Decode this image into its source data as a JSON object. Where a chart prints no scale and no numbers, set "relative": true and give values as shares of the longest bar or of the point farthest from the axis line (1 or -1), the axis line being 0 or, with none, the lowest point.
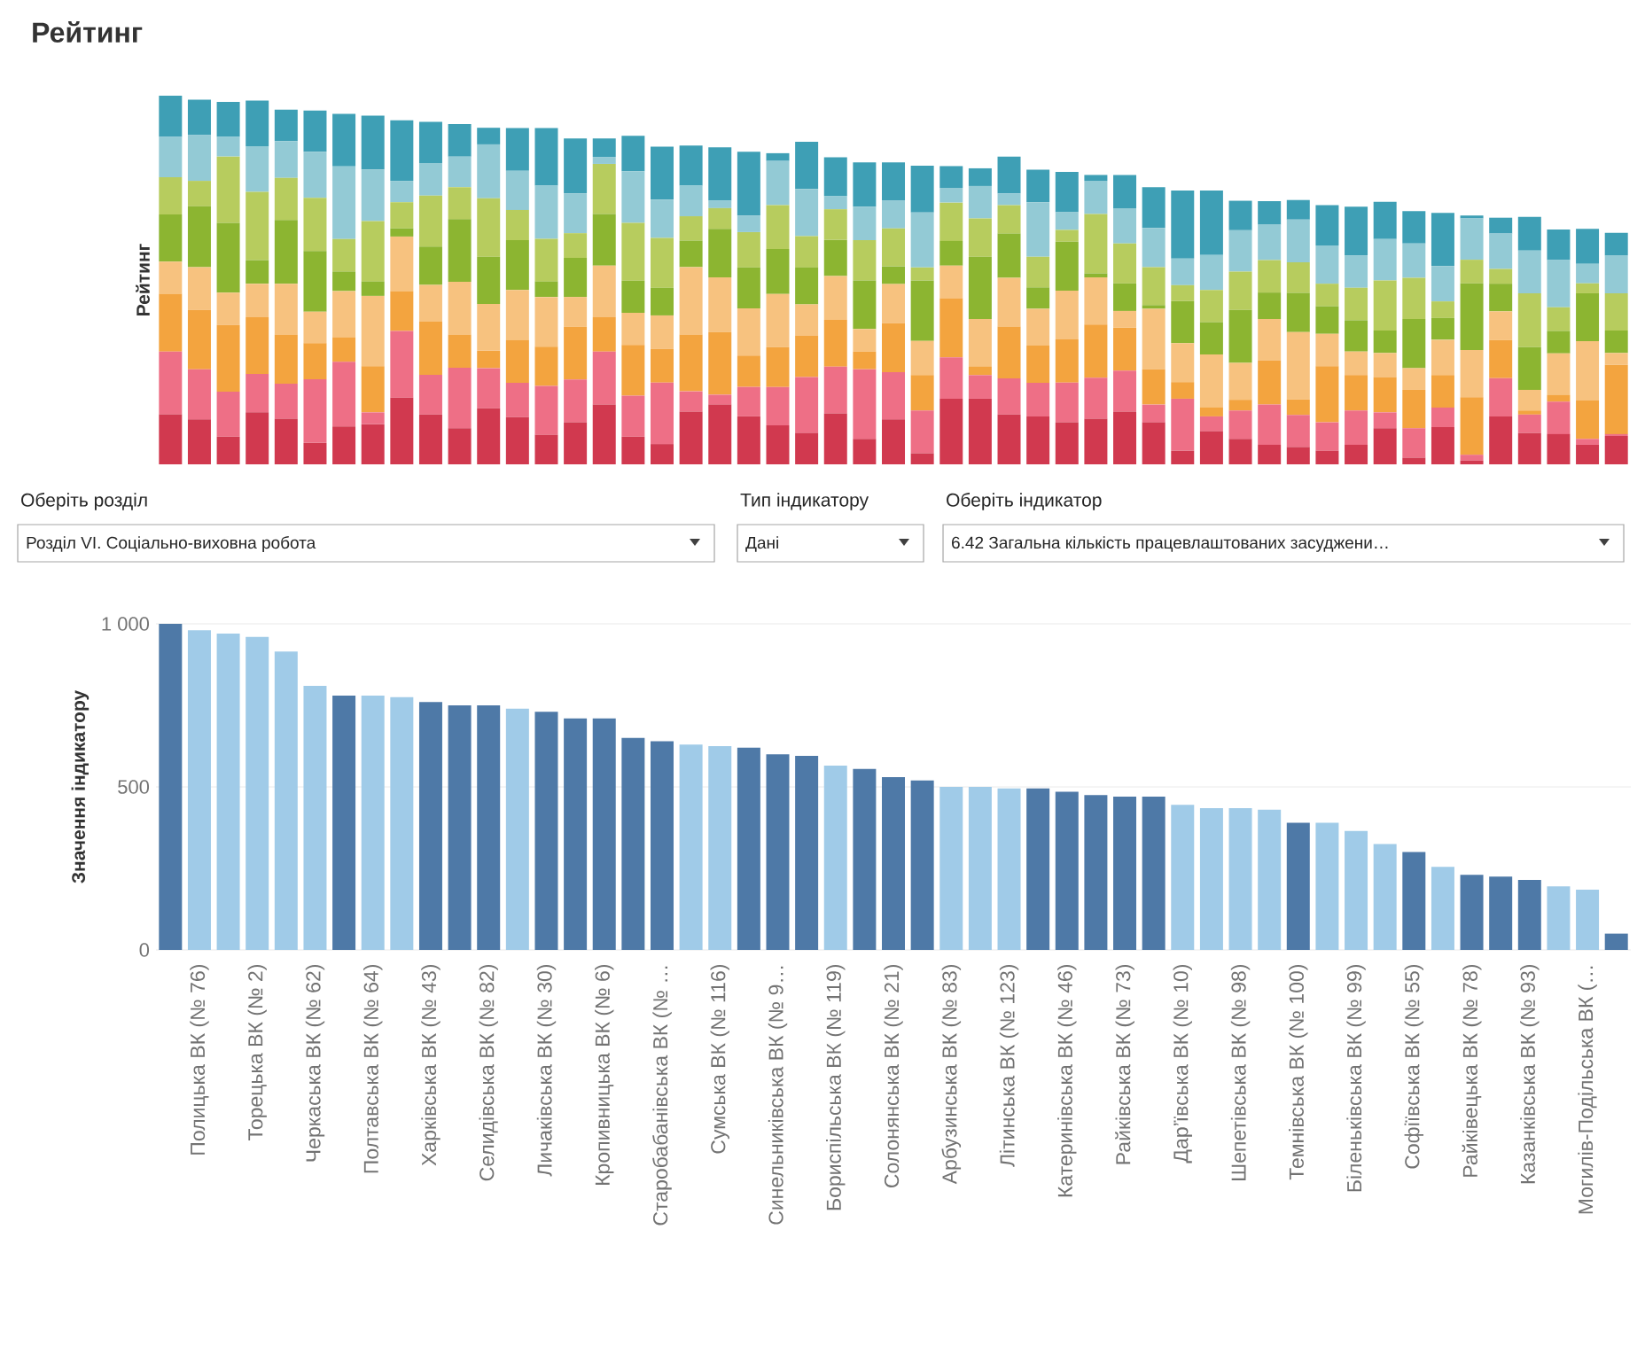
{
  "chart_data": [
    {
      "type": "bar",
      "title": "Рейтинг",
      "ylabel": "Рейтинг",
      "stacked": true,
      "relative": true,
      "categories": [
        null,
        null,
        null,
        null,
        null,
        null,
        null,
        null,
        null,
        null,
        null,
        null,
        null,
        null,
        null,
        null,
        null,
        null,
        null,
        null,
        null,
        null,
        null,
        null,
        null,
        null,
        null,
        null,
        null,
        null,
        null,
        null,
        null,
        null,
        null,
        null,
        null,
        null,
        null,
        null,
        null,
        null,
        null,
        null,
        null,
        null,
        null,
        null,
        null,
        null,
        null
      ],
      "series": [
        {
          "color": "#d1394f",
          "values": [
            0.136,
            0.122,
            0.075,
            0.141,
            0.124,
            0.058,
            0.103,
            0.109,
            0.181,
            0.135,
            0.098,
            0.152,
            0.128,
            0.08,
            0.114,
            0.162,
            0.075,
            0.055,
            0.143,
            0.162,
            0.13,
            0.106,
            0.085,
            0.138,
            0.069,
            0.122,
            0.03,
            0.178,
            0.178,
            0.135,
            0.13,
            0.114,
            0.124,
            0.143,
            0.114,
            0.037,
            0.09,
            0.069,
            0.053,
            0.047,
            0.037,
            0.053,
            0.098,
            0.018,
            0.101,
            0.01,
            0.13,
            0.085,
            0.082,
            0.053,
            0.077
          ]
        },
        {
          "color": "#ee6f86",
          "values": [
            0.17,
            0.136,
            0.122,
            0.104,
            0.095,
            0.173,
            0.175,
            0.032,
            0.181,
            0.108,
            0.164,
            0.109,
            0.093,
            0.133,
            0.116,
            0.144,
            0.111,
            0.167,
            0.055,
            0.027,
            0.08,
            0.104,
            0.152,
            0.127,
            0.189,
            0.128,
            0.116,
            0.112,
            0.064,
            0.098,
            0.091,
            0.108,
            0.111,
            0.111,
            0.048,
            0.141,
            0.04,
            0.077,
            0.109,
            0.087,
            0.077,
            0.093,
            0.043,
            0.08,
            0.053,
            0.016,
            0.104,
            0.05,
            0.088,
            0.016,
            0.005
          ]
        },
        {
          "color": "#f3a43f",
          "values": [
            0.157,
            0.161,
            0.181,
            0.154,
            0.133,
            0.098,
            0.067,
            0.125,
            0.108,
            0.144,
            0.09,
            0.047,
            0.117,
            0.106,
            0.144,
            0.093,
            0.138,
            0.091,
            0.154,
            0.17,
            0.085,
            0.108,
            0.112,
            0.127,
            0.048,
            0.133,
            0.096,
            0.161,
            0.024,
            0.141,
            0.101,
            0.117,
            0.144,
            0.117,
            0.096,
            0.045,
            0.024,
            0.029,
            0.12,
            0.042,
            0.152,
            0.096,
            0.095,
            0.104,
            0.088,
            0.156,
            0.104,
            0.011,
            0.019,
            0.104,
            0.188
          ]
        },
        {
          "color": "#f7c27f",
          "values": [
            0.087,
            0.116,
            0.088,
            0.091,
            0.138,
            0.085,
            0.125,
            0.191,
            0.148,
            0.1,
            0.143,
            0.127,
            0.135,
            0.135,
            0.08,
            0.14,
            0.087,
            0.091,
            0.183,
            0.148,
            0.128,
            0.144,
            0.085,
            0.119,
            0.061,
            0.106,
            0.093,
            0.088,
            0.128,
            0.132,
            0.1,
            0.132,
            0.128,
            0.045,
            0.164,
            0.106,
            0.144,
            0.1,
            0.112,
            0.183,
            0.088,
            0.064,
            0.066,
            0.059,
            0.096,
            0.128,
            0.077,
            0.056,
            0.112,
            0.161,
            0.032
          ]
        },
        {
          "color": "#8cb531",
          "values": [
            0.128,
            0.165,
            0.189,
            0.064,
            0.173,
            0.165,
            0.053,
            0.039,
            0.022,
            0.104,
            0.17,
            0.128,
            0.135,
            0.042,
            0.106,
            0.14,
            0.087,
            0.075,
            0.072,
            0.132,
            0.111,
            0.122,
            0.1,
            0.098,
            0.132,
            0.048,
            0.164,
            0.067,
            0.169,
            0.12,
            0.058,
            0.133,
            0.011,
            0.075,
            0.01,
            0.114,
            0.088,
            0.144,
            0.072,
            0.106,
            0.075,
            0.085,
            0.061,
            0.133,
            0.059,
            0.181,
            0.075,
            0.116,
            0.061,
            0.13,
            0.061
          ]
        },
        {
          "color": "#b7cc5e",
          "values": [
            0.101,
            0.069,
            0.18,
            0.185,
            0.114,
            0.144,
            0.088,
            0.164,
            0.071,
            0.138,
            0.087,
            0.159,
            0.082,
            0.116,
            0.067,
            0.136,
            0.157,
            0.135,
            0.066,
            0.056,
            0.096,
            0.119,
            0.085,
            0.083,
            0.109,
            0.103,
            0.035,
            0.104,
            0.104,
            0.077,
            0.083,
            0.032,
            0.161,
            0.108,
            0.103,
            0.043,
            0.087,
            0.104,
            0.088,
            0.083,
            0.061,
            0.088,
            0.136,
            0.112,
            0.045,
            0.064,
            0.04,
            0.146,
            0.064,
            0.027,
            0.101
          ]
        },
        {
          "color": "#93cad5",
          "values": [
            0.109,
            0.124,
            0.053,
            0.124,
            0.1,
            0.125,
            0.197,
            0.14,
            0.058,
            0.088,
            0.083,
            0.146,
            0.106,
            0.144,
            0.108,
            0.019,
            0.14,
            0.104,
            0.083,
            0.021,
            0.045,
            0.12,
            0.128,
            0.035,
            0.091,
            0.075,
            0.149,
            0.04,
            0.088,
            0.032,
            0.148,
            0.048,
            0.09,
            0.096,
            0.106,
            0.072,
            0.095,
            0.112,
            0.096,
            0.116,
            0.104,
            0.087,
            0.112,
            0.093,
            0.096,
            0.112,
            0.096,
            0.116,
            0.128,
            0.053,
            0.103
          ]
        },
        {
          "color": "#3e9fb5",
          "values": [
            0.112,
            0.096,
            0.095,
            0.124,
            0.085,
            0.112,
            0.143,
            0.146,
            0.164,
            0.112,
            0.088,
            0.045,
            0.116,
            0.156,
            0.149,
            0.05,
            0.096,
            0.144,
            0.109,
            0.144,
            0.173,
            0.021,
            0.128,
            0.106,
            0.12,
            0.104,
            0.127,
            0.059,
            0.048,
            0.1,
            0.088,
            0.109,
            0.016,
            0.09,
            0.111,
            0.185,
            0.175,
            0.08,
            0.064,
            0.053,
            0.109,
            0.133,
            0.101,
            0.088,
            0.144,
            0.008,
            0.043,
            0.091,
            0.083,
            0.095,
            0.061
          ]
        }
      ]
    },
    {
      "type": "bar",
      "ylabel": "Значення індикатору",
      "ylim": [
        0,
        1000
      ],
      "yticks": [
        0,
        500,
        {
          "value": 1000,
          "label": "1 000"
        }
      ],
      "grid": "y",
      "categories": [
        null,
        "Полицька ВК (№ 76)",
        null,
        "Торецька ВК (№ 2)",
        null,
        "Черкаська ВК (№ 62)",
        null,
        "Полтавська ВК (№ 64)",
        null,
        "Харківська ВК (№ 43)",
        null,
        "Селидівська ВК (№ 82)",
        null,
        "Личаківська ВК (№ 30)",
        null,
        "Кропивницька ВК (№ 6)",
        null,
        "Старобабанівська ВК (№ …",
        null,
        "Сумська ВК (№ 116)",
        null,
        "Синельниківська ВК (№ 9…",
        null,
        "Бориспільська ВК (№ 119)",
        null,
        "Солонянська ВК (№ 21)",
        null,
        "Арбузинська ВК (№ 83)",
        null,
        "Літинська ВК (№ 123)",
        null,
        "Катеринівська ВК (№ 46)",
        null,
        "Райківська ВК (№ 73)",
        null,
        "Дар’ївська ВК (№ 10)",
        null,
        "Шепетівська ВК (№ 98)",
        null,
        "Темнівська ВК (№ 100)",
        null,
        "Біленьківська ВК (№ 99)",
        null,
        "Софіївська ВК (№ 55)",
        null,
        "Райківецька ВК (№ 78)",
        null,
        "Казанківська ВК (№ 93)",
        null,
        "Могилів-Подільська ВК (…",
        null
      ],
      "values": [
        1000,
        980,
        970,
        960,
        915,
        810,
        780,
        780,
        775,
        760,
        750,
        750,
        740,
        730,
        710,
        710,
        650,
        640,
        630,
        625,
        620,
        600,
        595,
        565,
        555,
        530,
        520,
        500,
        500,
        495,
        495,
        485,
        475,
        470,
        470,
        445,
        435,
        435,
        430,
        390,
        390,
        365,
        325,
        300,
        255,
        230,
        225,
        215,
        195,
        185,
        50
      ],
      "colors": [
        "#4e79a7",
        "#a0cbe8",
        "#a0cbe8",
        "#a0cbe8",
        "#a0cbe8",
        "#a0cbe8",
        "#4e79a7",
        "#a0cbe8",
        "#a0cbe8",
        "#4e79a7",
        "#4e79a7",
        "#4e79a7",
        "#a0cbe8",
        "#4e79a7",
        "#4e79a7",
        "#4e79a7",
        "#4e79a7",
        "#4e79a7",
        "#a0cbe8",
        "#a0cbe8",
        "#4e79a7",
        "#4e79a7",
        "#4e79a7",
        "#a0cbe8",
        "#4e79a7",
        "#4e79a7",
        "#4e79a7",
        "#a0cbe8",
        "#a0cbe8",
        "#a0cbe8",
        "#4e79a7",
        "#4e79a7",
        "#4e79a7",
        "#4e79a7",
        "#4e79a7",
        "#a0cbe8",
        "#a0cbe8",
        "#a0cbe8",
        "#a0cbe8",
        "#4e79a7",
        "#a0cbe8",
        "#a0cbe8",
        "#a0cbe8",
        "#4e79a7",
        "#a0cbe8",
        "#4e79a7",
        "#4e79a7",
        "#4e79a7",
        "#a0cbe8",
        "#a0cbe8",
        "#4e79a7"
      ],
      "annotations": [
        "Оберіть розділ",
        "Розділ VI. Соціально-виховна робота",
        "Тип індикатору",
        "Дані",
        "Оберіть індикатор",
        "6.42 Загальна кількість працевлаштованих засуджени…"
      ]
    }
  ]
}
